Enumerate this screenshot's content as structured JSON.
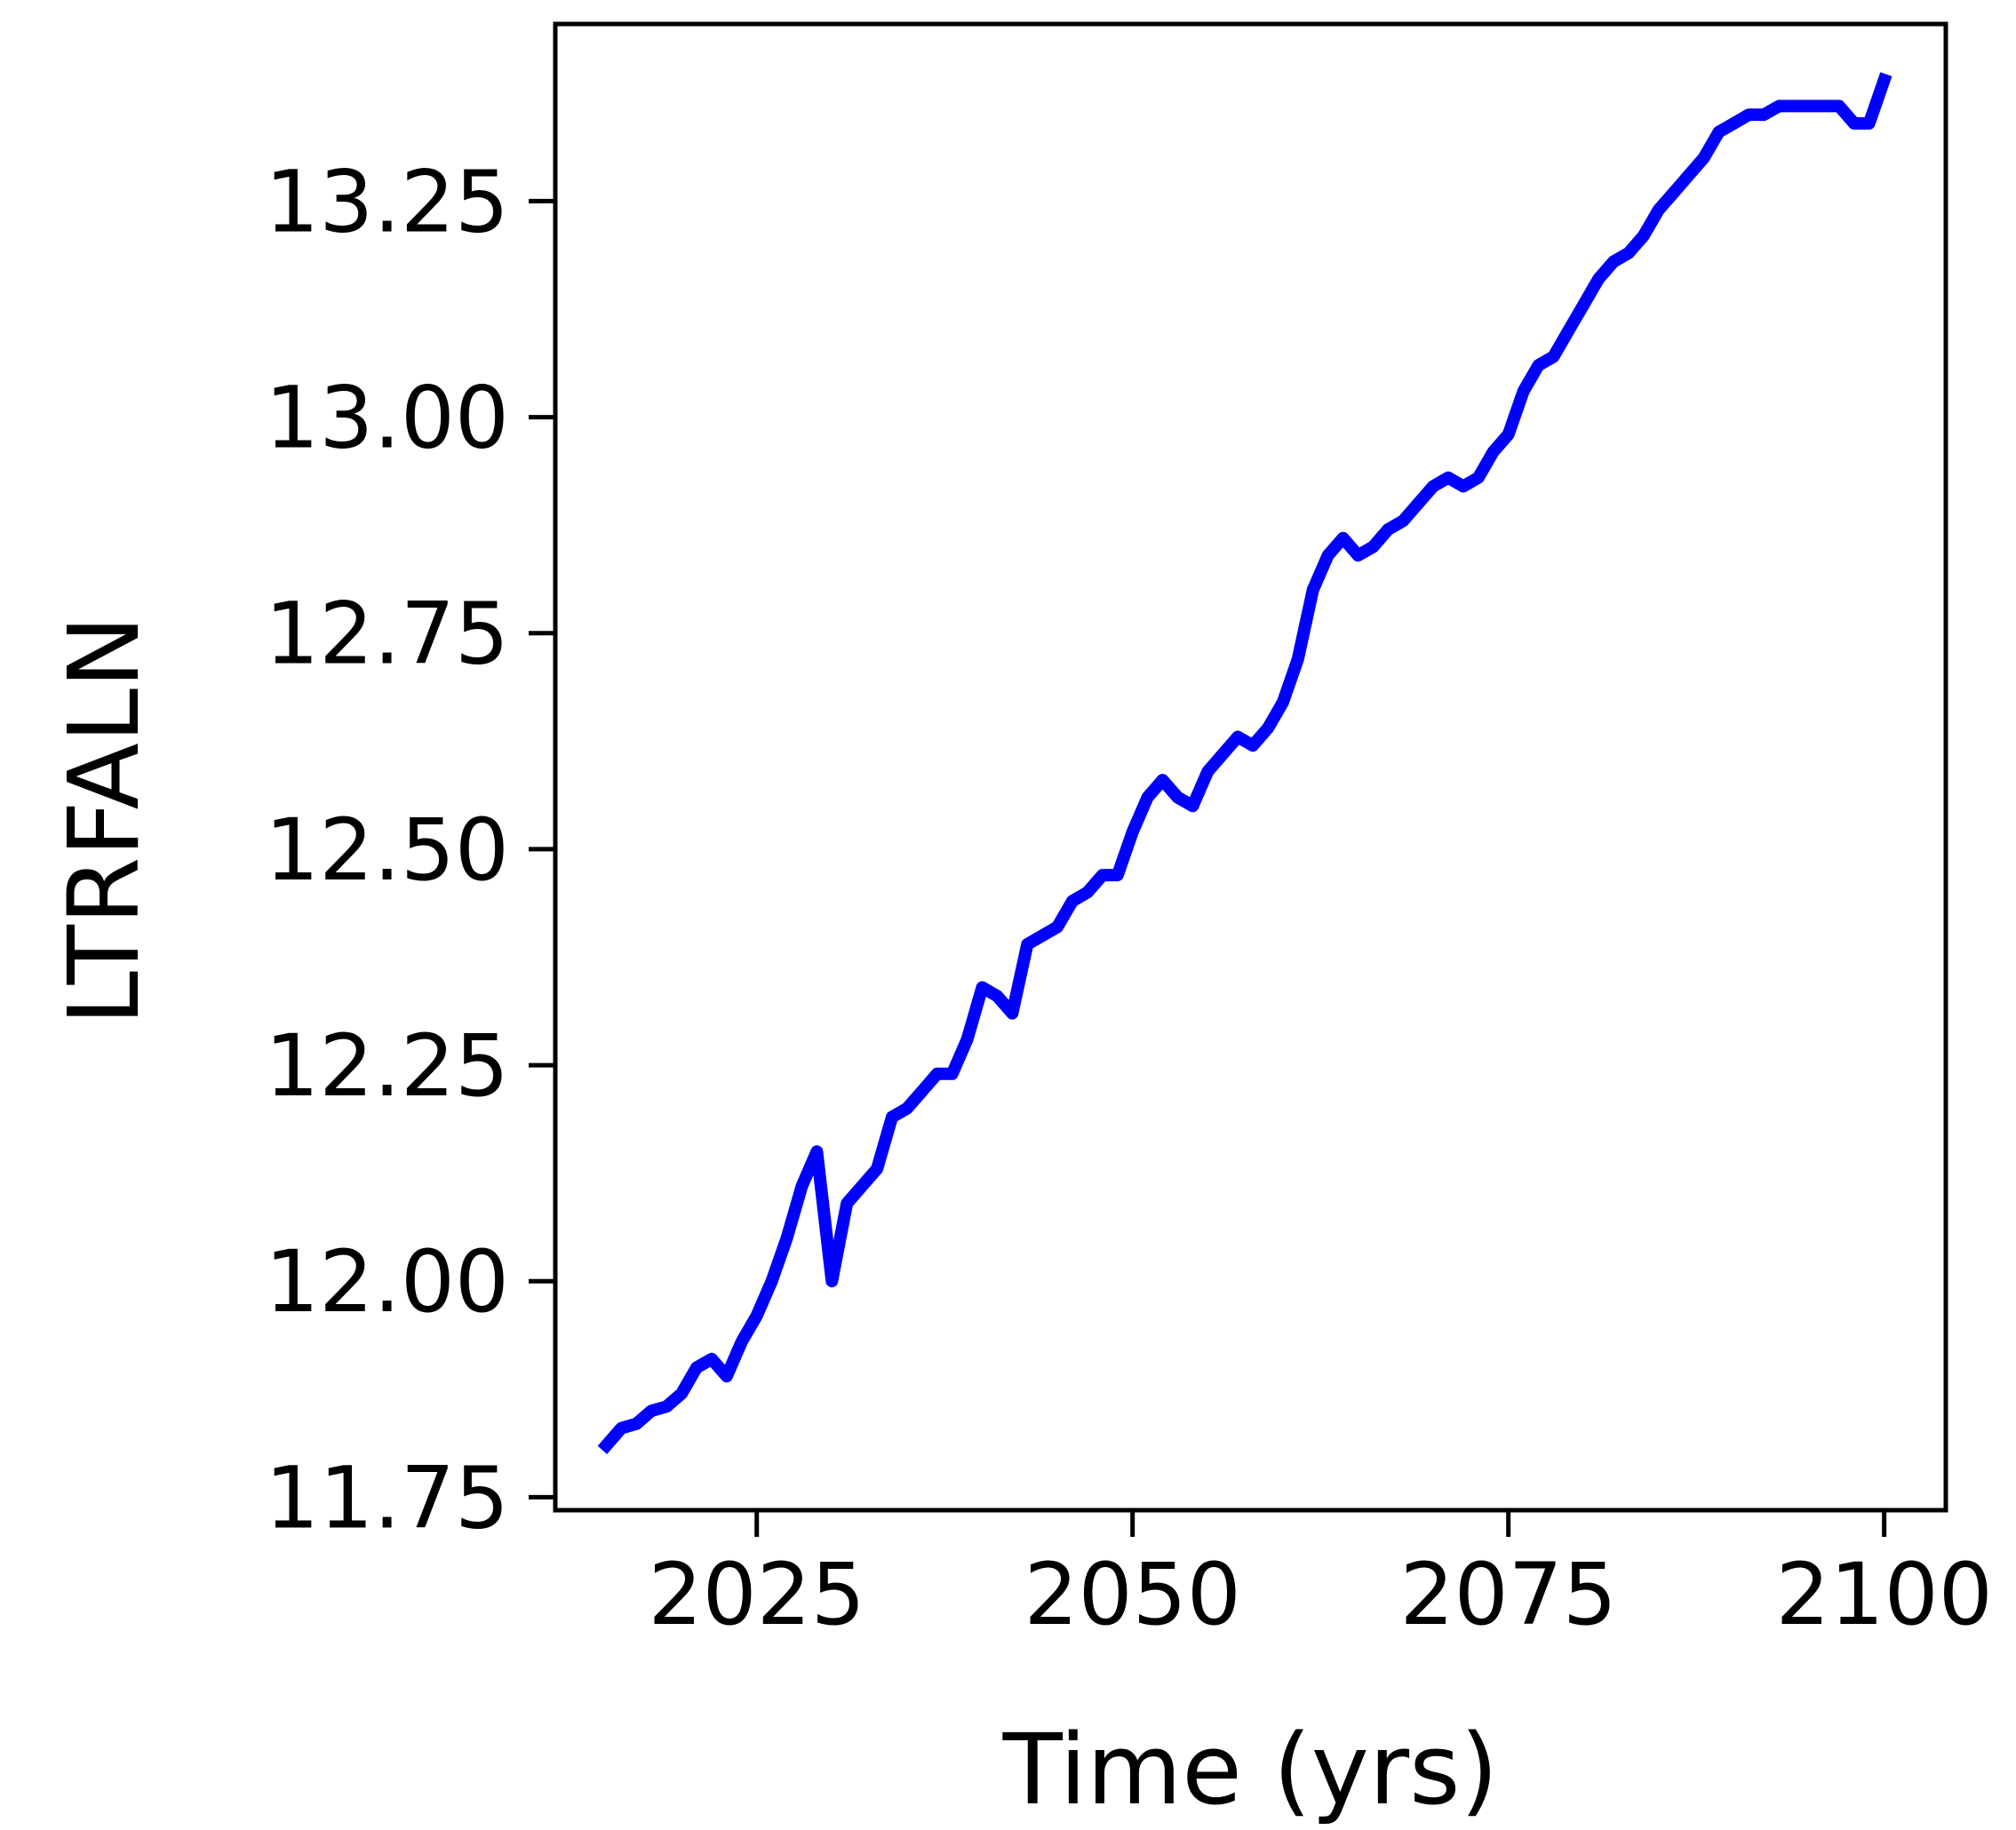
{
  "chart_data": {
    "type": "line",
    "title": "",
    "xlabel": "Time (yrs)",
    "ylabel": "LTRFALN",
    "xlim": [
      2011.6,
      2104.1
    ],
    "ylim": [
      11.735,
      13.455
    ],
    "x_ticks": [
      2025,
      2050,
      2075,
      2100
    ],
    "x_tick_labels": [
      "2025",
      "2050",
      "2075",
      "2100"
    ],
    "y_ticks": [
      11.75,
      12.0,
      12.25,
      12.5,
      12.75,
      13.0,
      13.25
    ],
    "y_tick_labels": [
      "11.75",
      "12.00",
      "12.25",
      "12.50",
      "12.75",
      "13.00",
      "13.25"
    ],
    "grid": false,
    "legend": "none",
    "series": [
      {
        "color": "#0000ff",
        "x": [
          2015,
          2016,
          2017,
          2018,
          2019,
          2020,
          2021,
          2022,
          2023,
          2024,
          2025,
          2026,
          2027,
          2028,
          2029,
          2030,
          2031,
          2032,
          2033,
          2034,
          2035,
          2036,
          2037,
          2038,
          2039,
          2040,
          2041,
          2042,
          2043,
          2044,
          2045,
          2046,
          2047,
          2048,
          2049,
          2050,
          2051,
          2052,
          2053,
          2054,
          2055,
          2056,
          2057,
          2058,
          2059,
          2060,
          2061,
          2062,
          2063,
          2064,
          2065,
          2066,
          2067,
          2068,
          2069,
          2070,
          2071,
          2072,
          2073,
          2074,
          2075,
          2076,
          2077,
          2078,
          2079,
          2080,
          2081,
          2082,
          2083,
          2084,
          2085,
          2086,
          2087,
          2088,
          2089,
          2090,
          2091,
          2092,
          2093,
          2094,
          2095,
          2096,
          2097,
          2098,
          2099,
          2100
        ],
        "y": [
          11.81,
          11.83,
          11.835,
          11.85,
          11.855,
          11.87,
          11.9,
          11.91,
          11.89,
          11.93,
          11.96,
          12.0,
          12.05,
          12.11,
          12.15,
          12.0,
          12.09,
          12.11,
          12.13,
          12.19,
          12.2,
          12.22,
          12.24,
          12.24,
          12.28,
          12.34,
          12.33,
          12.31,
          12.39,
          12.4,
          12.41,
          12.44,
          12.45,
          12.47,
          12.47,
          12.52,
          12.56,
          12.58,
          12.56,
          12.55,
          12.59,
          12.61,
          12.63,
          12.62,
          12.64,
          12.67,
          12.72,
          12.8,
          12.84,
          12.86,
          12.84,
          12.85,
          12.87,
          12.88,
          12.9,
          12.92,
          12.93,
          12.92,
          12.93,
          12.96,
          12.98,
          13.03,
          13.06,
          13.07,
          13.1,
          13.13,
          13.16,
          13.18,
          13.19,
          13.21,
          13.24,
          13.26,
          13.28,
          13.3,
          13.33,
          13.34,
          13.35,
          13.35,
          13.36,
          13.36,
          13.36,
          13.36,
          13.36,
          13.34,
          13.34,
          13.39
        ]
      }
    ]
  }
}
